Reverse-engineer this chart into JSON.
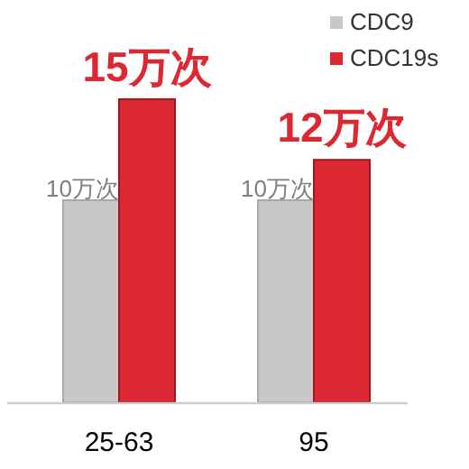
{
  "chart_data": {
    "type": "bar",
    "categories": [
      "25-63",
      "95"
    ],
    "series": [
      {
        "name": "CDC9",
        "color": "#c8c8c8",
        "values": [
          10,
          10
        ],
        "value_labels": [
          "10万次",
          "10万次"
        ]
      },
      {
        "name": "CDC19s",
        "color": "#dc2832",
        "values": [
          15,
          12
        ],
        "value_labels": [
          "15万次",
          "12万次"
        ]
      }
    ],
    "legend": "top right"
  }
}
